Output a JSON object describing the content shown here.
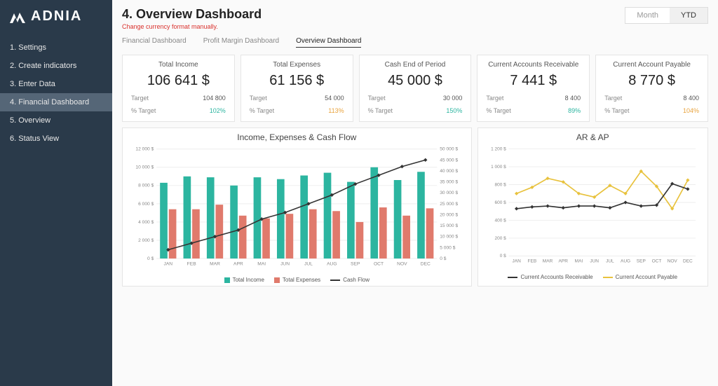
{
  "brand": "ADNIA",
  "sidebar": {
    "items": [
      {
        "label": "1. Settings"
      },
      {
        "label": "2. Create indicators"
      },
      {
        "label": "3. Enter Data"
      },
      {
        "label": "4. Financial Dashboard"
      },
      {
        "label": "5. Overview"
      },
      {
        "label": "6. Status View"
      }
    ],
    "active_index": 3
  },
  "page": {
    "title": "4. Overview Dashboard",
    "warning": "Change currency format manually."
  },
  "tabs": {
    "items": [
      "Financial Dashboard",
      "Profit Margin Dashboard",
      "Overview Dashboard"
    ],
    "active_index": 2
  },
  "period": {
    "options": [
      "Month",
      "YTD"
    ],
    "active_index": 1
  },
  "kpis": [
    {
      "title": "Total Income",
      "value": "106 641 $",
      "target": "104 800",
      "pct": "102%",
      "pct_class": "pct-teal"
    },
    {
      "title": "Total Expenses",
      "value": "61 156 $",
      "target": "54 000",
      "pct": "113%",
      "pct_class": "pct-amber"
    },
    {
      "title": "Cash End of Period",
      "value": "45 000 $",
      "target": "30 000",
      "pct": "150%",
      "pct_class": "pct-teal"
    },
    {
      "title": "Current Accounts Receivable",
      "value": "7 441 $",
      "target": "8 400",
      "pct": "89%",
      "pct_class": "pct-teal"
    },
    {
      "title": "Current Account Payable",
      "value": "8 770 $",
      "target": "8 400",
      "pct": "104%",
      "pct_class": "pct-amber"
    }
  ],
  "chart1": {
    "title": "Income, Expenses & Cash Flow",
    "type": "combo-bar-line",
    "categories": [
      "JAN",
      "FEB",
      "MAR",
      "APR",
      "MAI",
      "JUN",
      "JUL",
      "AUG",
      "SEP",
      "OCT",
      "NOV",
      "DEC"
    ],
    "income": [
      8300,
      9000,
      8900,
      8000,
      8900,
      8700,
      9100,
      9400,
      8400,
      10000,
      8600,
      9500
    ],
    "expenses": [
      5400,
      5400,
      5900,
      4700,
      4400,
      4900,
      5400,
      5200,
      4000,
      5600,
      4700,
      5500
    ],
    "cashflow": [
      4000,
      7000,
      10000,
      13000,
      18000,
      21000,
      25000,
      29000,
      34000,
      38000,
      42000,
      45000
    ],
    "y_left": {
      "min": 0,
      "max": 12000,
      "step": 2000,
      "suffix": " $"
    },
    "y_right": {
      "min": 0,
      "max": 50000,
      "step": 5000,
      "suffix": " $"
    },
    "colors": {
      "income": "#2cb5a0",
      "expenses": "#e07a6c",
      "cashflow": "#333333",
      "grid": "#eeeeee",
      "axis_text": "#888888"
    },
    "bar_width": 0.32,
    "legend": [
      {
        "label": "Total Income",
        "color": "#2cb5a0",
        "shape": "square"
      },
      {
        "label": "Total Expenses",
        "color": "#e07a6c",
        "shape": "square"
      },
      {
        "label": "Cash Flow",
        "color": "#333333",
        "shape": "line"
      }
    ]
  },
  "chart2": {
    "title": "AR & AP",
    "type": "line",
    "categories": [
      "JAN",
      "FEB",
      "MAR",
      "APR",
      "MAI",
      "JUN",
      "JUL",
      "AUG",
      "SEP",
      "OCT",
      "NOV",
      "DEC"
    ],
    "ar": [
      530,
      550,
      560,
      540,
      560,
      560,
      540,
      600,
      560,
      570,
      810,
      750
    ],
    "ap": [
      700,
      770,
      870,
      830,
      700,
      660,
      790,
      700,
      950,
      780,
      530,
      850
    ],
    "y": {
      "min": 0,
      "max": 1200,
      "step": 200,
      "suffix": " $"
    },
    "colors": {
      "ar": "#333333",
      "ap": "#e8c23d",
      "grid": "#eeeeee",
      "axis_text": "#888888"
    },
    "legend": [
      {
        "label": "Current Accounts Receivable",
        "color": "#333333",
        "shape": "line"
      },
      {
        "label": "Current Account Payable",
        "color": "#e8c23d",
        "shape": "line"
      }
    ]
  },
  "labels": {
    "target": "Target",
    "pct_target": "% Target"
  }
}
